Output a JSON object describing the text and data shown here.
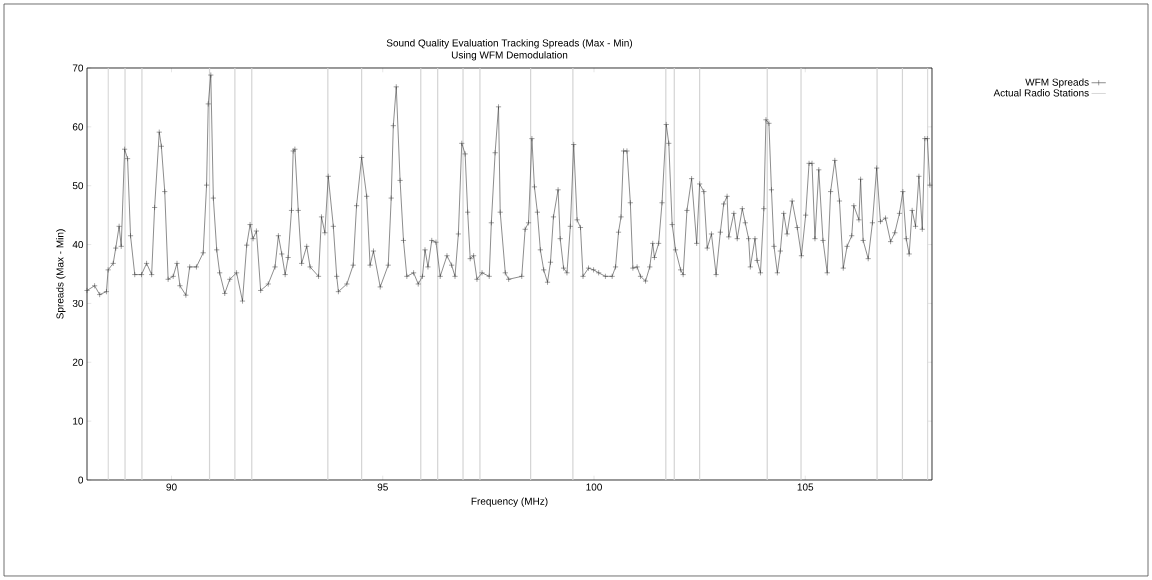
{
  "chart_data": {
    "type": "line",
    "title": "Sound Quality Evaluation Tracking Spreads (Max - Min)",
    "subtitle": "Using WFM Demodulation",
    "xlabel": "Frequency (MHz)",
    "ylabel": "Spreads (Max - Min)",
    "xlim": [
      88,
      108
    ],
    "ylim": [
      0,
      70
    ],
    "xticks": [
      90,
      95,
      100,
      105
    ],
    "yticks": [
      0,
      10,
      20,
      30,
      40,
      50,
      60,
      70
    ],
    "grid": false,
    "legend": "top right",
    "marker": "cross",
    "line_style": "solid",
    "series": [
      {
        "name": "WFM Spreads",
        "color": "#404040",
        "x": [
          88.0,
          88.18,
          88.3,
          88.46,
          88.5,
          88.62,
          88.68,
          88.76,
          88.81,
          88.89,
          88.96,
          89.03,
          89.13,
          89.29,
          89.41,
          89.53,
          89.6,
          89.71,
          89.76,
          89.84,
          89.92,
          90.04,
          90.13,
          90.2,
          90.34,
          90.43,
          90.59,
          90.75,
          90.83,
          90.87,
          90.93,
          90.99,
          91.07,
          91.14,
          91.26,
          91.38,
          91.54,
          91.68,
          91.78,
          91.86,
          91.93,
          92.01,
          92.11,
          92.29,
          92.45,
          92.53,
          92.61,
          92.69,
          92.76,
          92.84,
          92.88,
          92.92,
          93.0,
          93.08,
          93.2,
          93.28,
          93.48,
          93.55,
          93.63,
          93.71,
          93.83,
          93.91,
          93.95,
          94.15,
          94.3,
          94.38,
          94.5,
          94.62,
          94.7,
          94.78,
          94.94,
          95.13,
          95.2,
          95.25,
          95.32,
          95.41,
          95.49,
          95.57,
          95.73,
          95.84,
          95.94,
          96.0,
          96.07,
          96.16,
          96.26,
          96.36,
          96.52,
          96.63,
          96.71,
          96.79,
          96.87,
          96.95,
          97.01,
          97.07,
          97.15,
          97.23,
          97.35,
          97.52,
          97.57,
          97.66,
          97.74,
          97.78,
          97.9,
          97.98,
          98.29,
          98.37,
          98.45,
          98.53,
          98.59,
          98.66,
          98.73,
          98.81,
          98.9,
          98.97,
          99.04,
          99.15,
          99.2,
          99.28,
          99.36,
          99.44,
          99.52,
          99.6,
          99.68,
          99.74,
          99.87,
          99.99,
          100.11,
          100.27,
          100.43,
          100.51,
          100.58,
          100.64,
          100.7,
          100.78,
          100.86,
          100.92,
          101.02,
          101.1,
          101.22,
          101.32,
          101.39,
          101.43,
          101.53,
          101.61,
          101.71,
          101.77,
          101.85,
          101.93,
          102.05,
          102.11,
          102.2,
          102.31,
          102.43,
          102.5,
          102.6,
          102.68,
          102.78,
          102.89,
          102.99,
          103.07,
          103.15,
          103.19,
          103.31,
          103.39,
          103.51,
          103.58,
          103.66,
          103.7,
          103.81,
          103.86,
          103.94,
          104.02,
          104.07,
          104.14,
          104.2,
          104.26,
          104.34,
          104.41,
          104.49,
          104.57,
          104.69,
          104.81,
          104.91,
          105.01,
          105.09,
          105.16,
          105.23,
          105.32,
          105.42,
          105.52,
          105.6,
          105.7,
          105.81,
          105.9,
          105.99,
          106.1,
          106.15,
          106.27,
          106.31,
          106.37,
          106.49,
          106.59,
          106.69,
          106.78,
          106.9,
          107.02,
          107.12,
          107.23,
          107.31,
          107.39,
          107.46,
          107.53,
          107.61,
          107.69,
          107.77,
          107.83,
          107.89,
          107.95
        ],
        "values": [
          32.2,
          33.0,
          31.5,
          32.0,
          35.7,
          36.8,
          39.4,
          43.1,
          39.7,
          56.2,
          54.6,
          41.5,
          34.9,
          34.9,
          36.8,
          34.9,
          46.3,
          59.1,
          56.7,
          49.0,
          34.1,
          34.6,
          36.8,
          33.0,
          31.4,
          36.2,
          36.2,
          38.6,
          50.1,
          63.9,
          68.8,
          47.9,
          39.1,
          35.2,
          31.7,
          34.1,
          35.2,
          30.4,
          39.9,
          43.4,
          41.0,
          42.3,
          32.2,
          33.3,
          36.2,
          41.5,
          38.4,
          34.9,
          37.8,
          45.8,
          55.9,
          56.2,
          45.8,
          36.8,
          39.7,
          36.2,
          34.6,
          44.7,
          42.0,
          51.6,
          43.1,
          34.6,
          32.0,
          33.3,
          36.5,
          46.6,
          54.8,
          48.2,
          36.5,
          38.9,
          32.8,
          36.5,
          47.9,
          60.2,
          66.8,
          50.9,
          40.7,
          34.6,
          35.2,
          33.3,
          34.6,
          39.1,
          36.2,
          40.7,
          40.4,
          34.6,
          38.1,
          36.5,
          34.6,
          41.8,
          57.2,
          55.4,
          45.5,
          37.6,
          38.1,
          34.1,
          35.2,
          34.6,
          43.7,
          55.6,
          63.4,
          45.5,
          35.2,
          34.1,
          34.6,
          42.6,
          43.7,
          58.0,
          49.8,
          45.5,
          39.1,
          35.7,
          33.6,
          37.0,
          44.7,
          49.3,
          41.0,
          36.0,
          35.2,
          43.1,
          57.0,
          44.2,
          42.9,
          34.6,
          36.0,
          35.7,
          35.2,
          34.6,
          34.6,
          36.2,
          42.1,
          44.7,
          55.9,
          55.9,
          47.1,
          36.0,
          36.2,
          34.6,
          33.8,
          36.2,
          40.2,
          37.8,
          40.2,
          47.1,
          60.4,
          57.2,
          43.4,
          39.1,
          35.7,
          34.9,
          45.8,
          51.2,
          40.2,
          50.3,
          49.0,
          39.4,
          41.8,
          34.9,
          42.1,
          46.9,
          48.2,
          41.3,
          45.3,
          41.0,
          46.1,
          43.7,
          41.0,
          36.2,
          41.0,
          37.3,
          35.2,
          46.1,
          61.2,
          60.6,
          49.3,
          39.7,
          35.2,
          38.9,
          45.3,
          41.8,
          47.4,
          42.9,
          38.1,
          45.0,
          53.8,
          53.8,
          41.0,
          52.7,
          40.7,
          35.2,
          49.0,
          54.3,
          47.4,
          36.0,
          39.7,
          41.5,
          46.6,
          44.2,
          51.1,
          40.7,
          37.6,
          43.7,
          53.0,
          43.9,
          44.5,
          40.5,
          42.0,
          45.3,
          49.0,
          41.0,
          38.4,
          45.8,
          43.1,
          51.6,
          42.6,
          58.0,
          58.0,
          50.1
        ]
      },
      {
        "name": "Actual Radio Stations",
        "type": "bar",
        "color": "#d4d4d4",
        "x": [
          88.5,
          88.9,
          89.3,
          90.9,
          91.5,
          91.9,
          93.7,
          94.5,
          95.9,
          96.3,
          96.9,
          97.3,
          98.5,
          99.5,
          101.7,
          101.9,
          102.5,
          104.1,
          104.9,
          106.7,
          107.3,
          107.9
        ],
        "values": [
          70,
          70,
          70,
          70,
          70,
          70,
          70,
          70,
          70,
          70,
          70,
          70,
          70,
          70,
          70,
          70,
          70,
          70,
          70,
          70,
          70,
          70
        ]
      }
    ]
  }
}
